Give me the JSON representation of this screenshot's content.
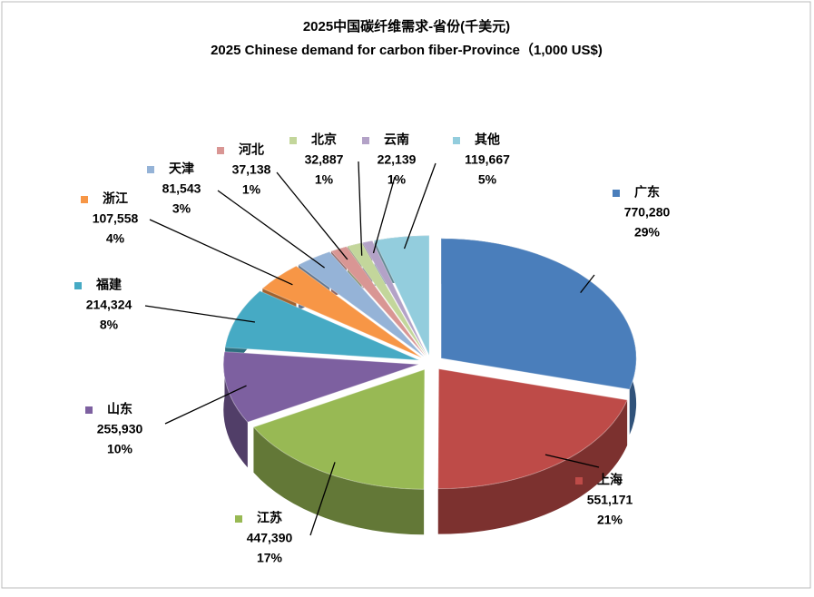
{
  "chart_data": {
    "type": "pie3d",
    "title": "2025中国碳纤维需求-省份(千美元)",
    "subtitle": "2025 Chinese demand for carbon fiber-Province（1,000 US$)",
    "categories": [
      "广东",
      "上海",
      "江苏",
      "山东",
      "福建",
      "浙江",
      "天津",
      "河北",
      "北京",
      "云南",
      "其他"
    ],
    "values": [
      770280,
      551171,
      447390,
      255930,
      214324,
      107558,
      81543,
      37138,
      32887,
      22139,
      119667
    ],
    "value_labels": [
      "770,280",
      "551,171",
      "447,390",
      "255,930",
      "214,324",
      "107,558",
      "81,543",
      "37,138",
      "32,887",
      "22,139",
      "119,667"
    ],
    "percent_labels": [
      "29%",
      "21%",
      "17%",
      "10%",
      "8%",
      "4%",
      "3%",
      "1%",
      "1%",
      "1%",
      "5%"
    ],
    "colors": [
      "#4a7ebb",
      "#be4b48",
      "#98b954",
      "#7d60a0",
      "#46aac4",
      "#f79646",
      "#95b3d7",
      "#d99694",
      "#c3d69b",
      "#b3a2c7",
      "#93cddd"
    ]
  }
}
